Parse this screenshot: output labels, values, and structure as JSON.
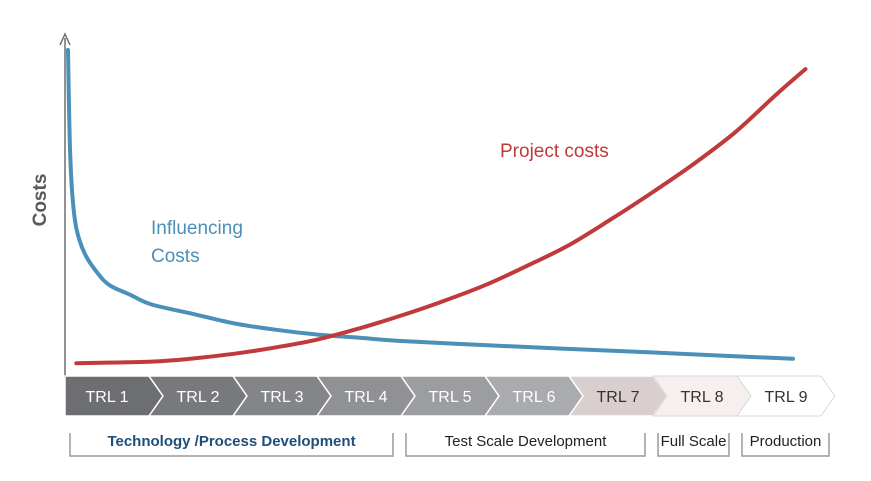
{
  "chart_data": {
    "type": "line",
    "ylabel": "Costs",
    "xlabel": "",
    "categories": [
      "TRL 1",
      "TRL 2",
      "TRL 3",
      "TRL 4",
      "TRL 5",
      "TRL 6",
      "TRL 7",
      "TRL 8",
      "TRL 9"
    ],
    "stage_colors": [
      "#6d6e71",
      "#78797c",
      "#848588",
      "#909194",
      "#9c9da0",
      "#aaabae",
      "#d9cfcf",
      "#f6efee",
      "#ffffff"
    ],
    "stage_text_colors": [
      "#ffffff",
      "#ffffff",
      "#ffffff",
      "#ffffff",
      "#ffffff",
      "#ffffff",
      "#333333",
      "#333333",
      "#333333"
    ],
    "phases": [
      {
        "label": "Technology /Process Development",
        "from": "TRL 1",
        "to": "TRL 4",
        "color": "#1f4e79",
        "bold": true
      },
      {
        "label": "Test Scale Development",
        "from": "TRL 5",
        "to": "TRL 7",
        "color": "#222222",
        "bold": false
      },
      {
        "label": "Full Scale",
        "from": "TRL 8",
        "to": "TRL 8",
        "color": "#222222",
        "bold": false
      },
      {
        "label": "Production",
        "from": "TRL 9",
        "to": "TRL 9",
        "color": "#222222",
        "bold": false
      }
    ],
    "series": [
      {
        "name": "Influencing Costs",
        "color": "#4a90b8",
        "values": [
          [
            0.0,
            100
          ],
          [
            0.02,
            72
          ],
          [
            0.05,
            55
          ],
          [
            0.1,
            44
          ],
          [
            0.2,
            36
          ],
          [
            0.35,
            30
          ],
          [
            0.5,
            26
          ],
          [
            0.75,
            23
          ],
          [
            1.0,
            20
          ],
          [
            1.5,
            17
          ],
          [
            2.0,
            14
          ],
          [
            2.5,
            12
          ],
          [
            3.0,
            10.5
          ],
          [
            3.5,
            9.5
          ],
          [
            4.0,
            8.5
          ],
          [
            5.0,
            7.2
          ],
          [
            6.0,
            6.0
          ],
          [
            7.0,
            4.9
          ],
          [
            8.0,
            3.7
          ],
          [
            8.7,
            2.9
          ]
        ]
      },
      {
        "name": "Project costs",
        "color": "#c0393b",
        "values": [
          [
            0.1,
            1.5
          ],
          [
            1.0,
            2.0
          ],
          [
            1.5,
            3.0
          ],
          [
            2.0,
            4.5
          ],
          [
            2.5,
            6.5
          ],
          [
            3.0,
            9.0
          ],
          [
            3.5,
            12.5
          ],
          [
            4.0,
            16.5
          ],
          [
            4.5,
            21
          ],
          [
            5.0,
            26
          ],
          [
            5.5,
            32
          ],
          [
            6.0,
            38.5
          ],
          [
            6.5,
            46.5
          ],
          [
            7.0,
            55
          ],
          [
            7.5,
            64
          ],
          [
            8.0,
            74
          ],
          [
            8.5,
            86
          ],
          [
            8.85,
            94
          ]
        ]
      }
    ],
    "series_labels": [
      "Influencing",
      "Costs",
      "Project costs"
    ],
    "ylim": [
      0,
      100
    ],
    "xlim": [
      0,
      9
    ],
    "grid": false,
    "legend": "none"
  }
}
